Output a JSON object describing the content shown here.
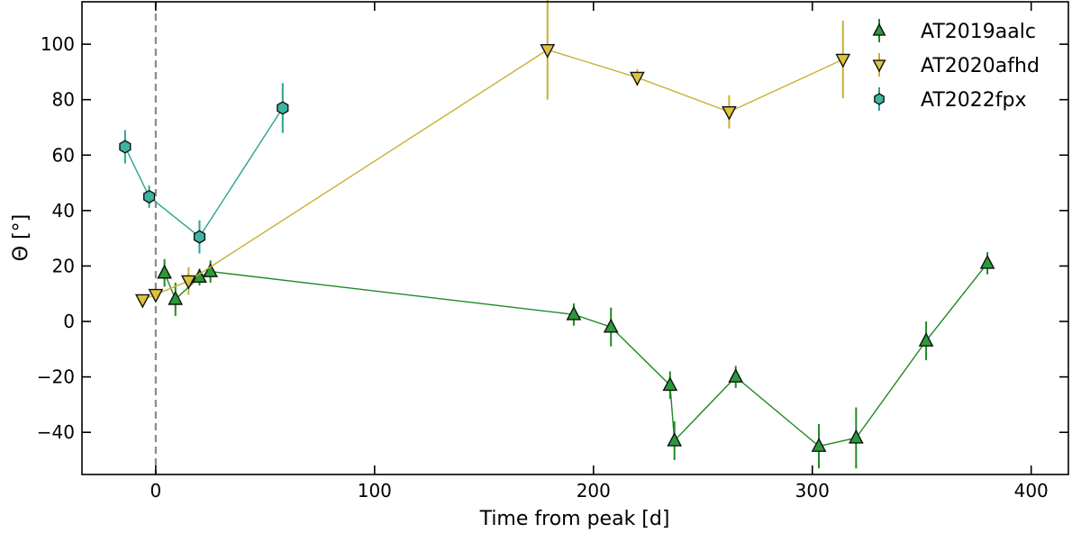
{
  "chart_data": {
    "type": "scatter",
    "title": "",
    "xlabel": "Time from peak [d]",
    "ylabel": "Θ [°]",
    "xlim": [
      -33.7,
      417
    ],
    "ylim": [
      -55.2,
      115.3
    ],
    "xticks": [
      0,
      100,
      200,
      300,
      400
    ],
    "yticks": [
      -40,
      -20,
      0,
      20,
      40,
      60,
      80,
      100
    ],
    "grid": false,
    "legend_position": "top-right",
    "reference_line": {
      "x": 0,
      "style": "dashed",
      "color": "#8c8c8c"
    },
    "series": [
      {
        "name": "AT2019aalc",
        "marker": "triangle-up",
        "color": "#2a9a3a",
        "line_color": "#1e8a24",
        "x": [
          4,
          9,
          20,
          25,
          191,
          208,
          235,
          237,
          265,
          303,
          320,
          352,
          380
        ],
        "y": [
          17.5,
          8,
          16,
          18,
          2.5,
          -2,
          -23,
          -43,
          -20,
          -45,
          -42,
          -7,
          21
        ],
        "yerr": [
          5,
          6,
          3,
          4,
          4,
          7,
          5,
          7,
          4,
          8,
          11,
          7,
          4
        ]
      },
      {
        "name": "AT2020afhd",
        "marker": "triangle-down",
        "color": "#dcc440",
        "line_color": "#c9b030",
        "x": [
          -6,
          0,
          15,
          179,
          220,
          262,
          314
        ],
        "y": [
          7.8,
          9.7,
          14.6,
          98,
          88,
          75.6,
          94.5
        ],
        "yerr": [
          0,
          2,
          5,
          18,
          3,
          6,
          14
        ]
      },
      {
        "name": "AT2022fpx",
        "marker": "hexagon",
        "color": "#3fb5a0",
        "line_color": "#2aa38f",
        "x": [
          -14,
          -3,
          20,
          58
        ],
        "y": [
          63,
          45,
          30.5,
          77
        ],
        "yerr": [
          6,
          4,
          6,
          9
        ]
      }
    ]
  }
}
